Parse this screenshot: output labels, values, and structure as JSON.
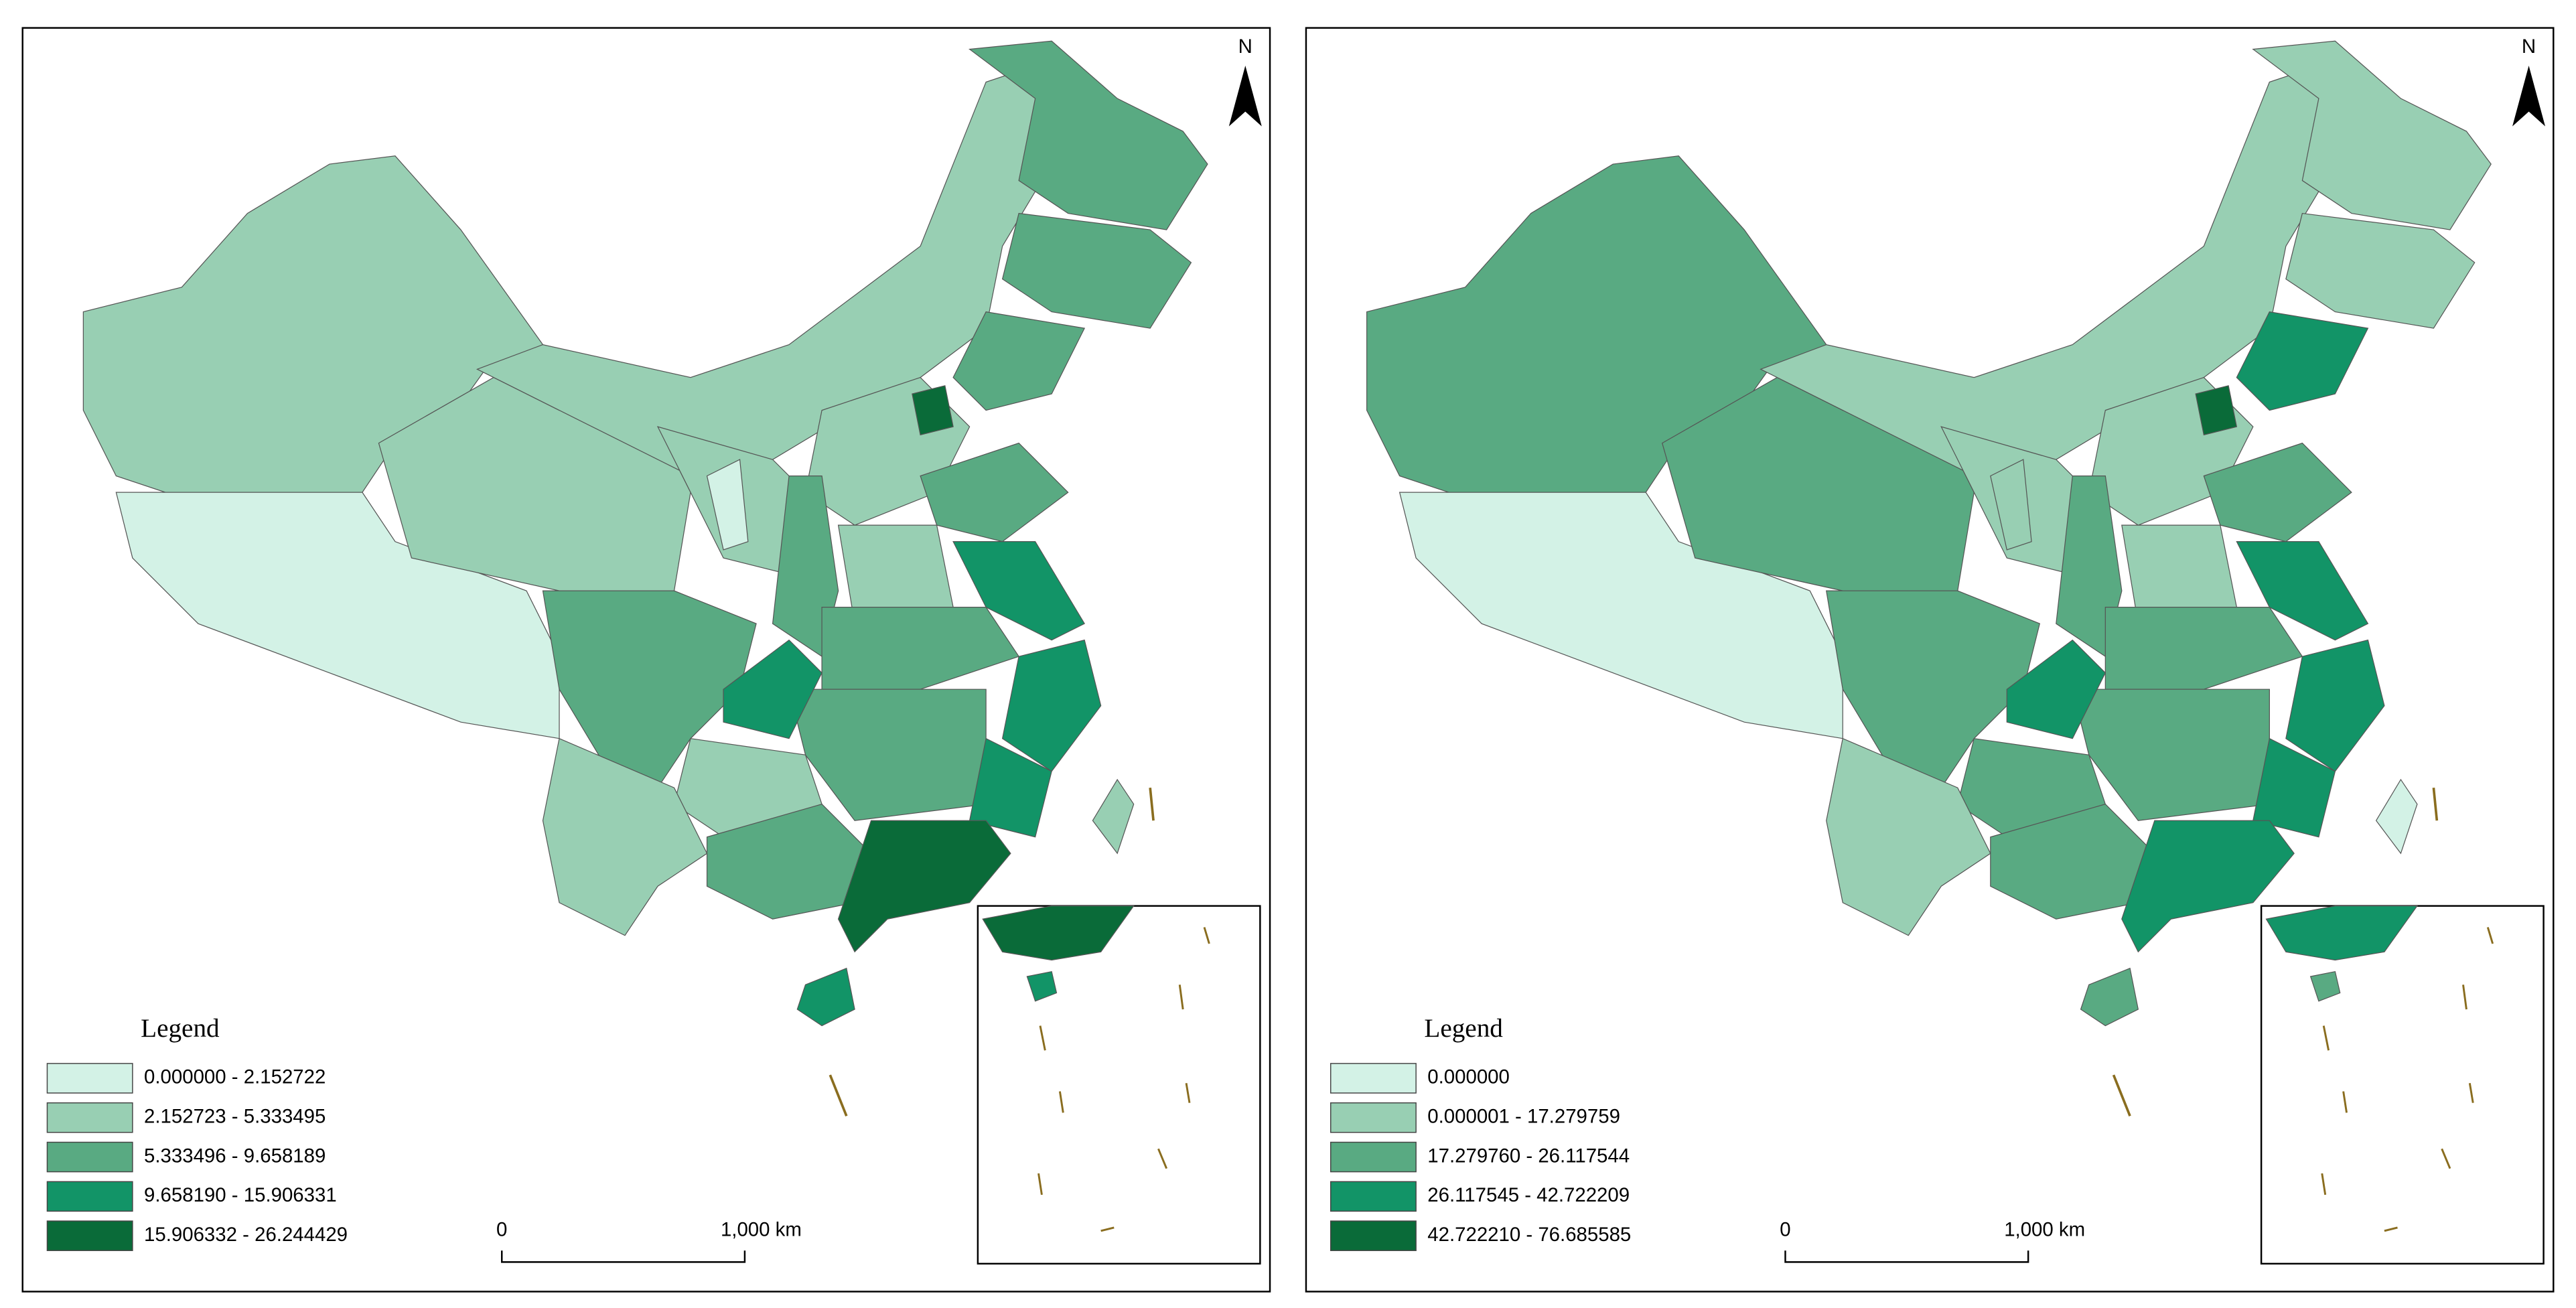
{
  "maps": [
    {
      "north": "N",
      "legend_title": "Legend",
      "legend_items": [
        {
          "label": "0.000000 - 2.152722",
          "color": "#d3f2e6"
        },
        {
          "label": "2.152723 - 5.333495",
          "color": "#98cfb3"
        },
        {
          "label": "5.333496 - 9.658189",
          "color": "#59aa82"
        },
        {
          "label": "9.658190 - 15.906331",
          "color": "#129467"
        },
        {
          "label": "15.906332 - 26.244429",
          "color": "#0a6b39"
        }
      ],
      "scale_start": "0",
      "scale_end": "1,000 km"
    },
    {
      "north": "N",
      "legend_title": "Legend",
      "legend_items": [
        {
          "label": "0.000000",
          "color": "#d3f2e6"
        },
        {
          "label": "0.000001 - 17.279759",
          "color": "#98cfb3"
        },
        {
          "label": "17.279760 - 26.117544",
          "color": "#59aa82"
        },
        {
          "label": "26.117545 - 42.722209",
          "color": "#129467"
        },
        {
          "label": "42.722210 - 76.685585",
          "color": "#0a6b39"
        }
      ],
      "scale_start": "0",
      "scale_end": "1,000 km"
    }
  ]
}
